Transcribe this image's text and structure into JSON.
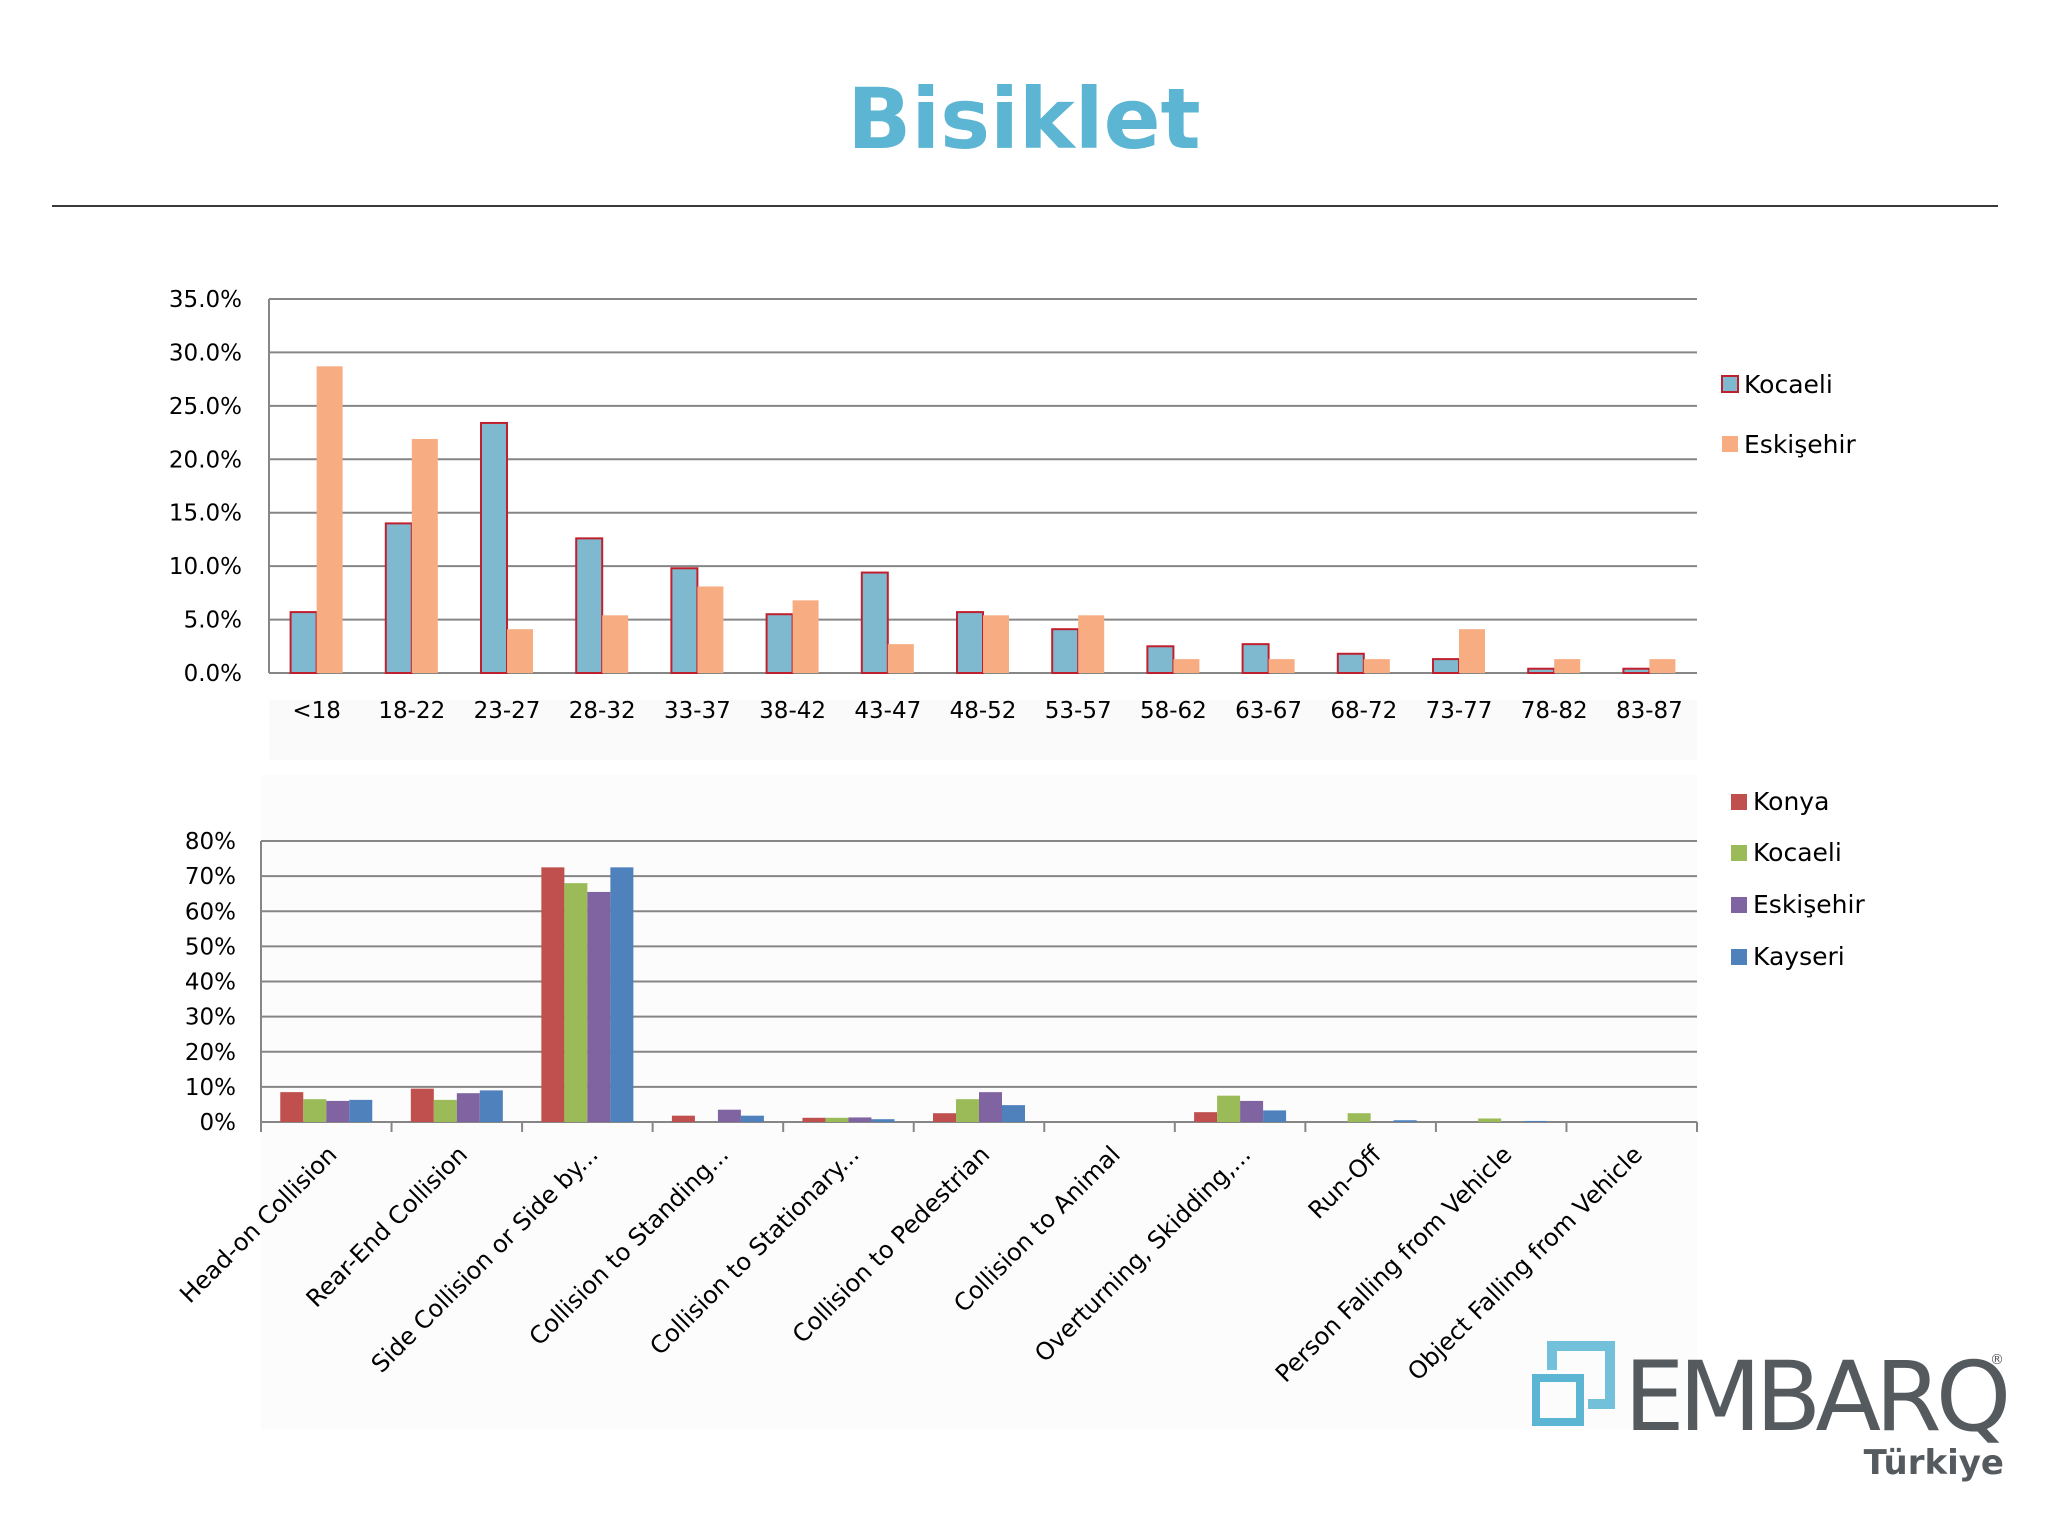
{
  "title": "Bisiklet",
  "colors": {
    "title": "#5bb5d3",
    "kocaeli_top_fill": "#7fb9d0",
    "kocaeli_top_border": "#c0202e",
    "eskisehir_top": "#f7ac82",
    "konya": "#c0504d",
    "kocaeli": "#9bbb59",
    "eskisehir": "#8064a2",
    "kayseri": "#4f81bd",
    "logo": "#5bb5d3"
  },
  "chart_data": [
    {
      "type": "bar",
      "title": "",
      "xlabel": "",
      "ylabel": "",
      "ylim": [
        0,
        35
      ],
      "y_ticks": [
        "0.0%",
        "5.0%",
        "10.0%",
        "15.0%",
        "20.0%",
        "25.0%",
        "30.0%",
        "35.0%"
      ],
      "y_tick_values": [
        0,
        5,
        10,
        15,
        20,
        25,
        30,
        35
      ],
      "grid": true,
      "legend_position": "right",
      "categories": [
        "<18",
        "18-22",
        "23-27",
        "28-32",
        "33-37",
        "38-42",
        "43-47",
        "48-52",
        "53-57",
        "58-62",
        "63-67",
        "68-72",
        "73-77",
        "78-82",
        "83-87"
      ],
      "series": [
        {
          "name": "Kocaeli",
          "values": [
            5.7,
            14.0,
            23.4,
            12.6,
            9.8,
            5.5,
            9.4,
            5.7,
            4.1,
            2.5,
            2.7,
            1.8,
            1.3,
            0.4,
            0.4
          ]
        },
        {
          "name": "Eskişehir",
          "values": [
            28.7,
            21.9,
            4.1,
            5.4,
            8.1,
            6.8,
            2.7,
            5.4,
            5.4,
            1.3,
            1.3,
            1.3,
            4.1,
            1.3,
            1.3
          ]
        }
      ]
    },
    {
      "type": "bar",
      "title": "",
      "xlabel": "",
      "ylabel": "",
      "ylim": [
        0,
        80
      ],
      "y_ticks": [
        "0%",
        "10%",
        "20%",
        "30%",
        "40%",
        "50%",
        "60%",
        "70%",
        "80%"
      ],
      "y_tick_values": [
        0,
        10,
        20,
        30,
        40,
        50,
        60,
        70,
        80
      ],
      "grid": true,
      "legend_position": "top-right",
      "categories": [
        "Head-on Collision",
        "Rear-End Collision",
        "Side Collision or Side by...",
        "Collision to Standing...",
        "Collision to Stationary...",
        "Collision to Pedestrian",
        "Collision to Animal",
        "Overturning, Skidding,...",
        "Run-Off",
        "Person Falling from Vehicle",
        "Object Falling from Vehicle"
      ],
      "series": [
        {
          "name": "Konya",
          "values": [
            8.5,
            9.5,
            72.5,
            1.8,
            1.2,
            2.5,
            0,
            2.8,
            0,
            0,
            0
          ]
        },
        {
          "name": "Kocaeli",
          "values": [
            6.5,
            6.3,
            68.0,
            0,
            1.2,
            6.5,
            0,
            7.5,
            2.5,
            1.0,
            0
          ]
        },
        {
          "name": "Eskişehir",
          "values": [
            6.0,
            8.2,
            65.5,
            3.5,
            1.3,
            8.5,
            0,
            6.0,
            0,
            0,
            0
          ]
        },
        {
          "name": "Kayseri",
          "values": [
            6.3,
            9.0,
            72.5,
            1.8,
            0.8,
            4.8,
            0,
            3.3,
            0.5,
            0.3,
            0
          ]
        }
      ]
    }
  ],
  "logo": {
    "name": "EMBARQ",
    "registered": "®",
    "subtitle": "Türkiye"
  }
}
